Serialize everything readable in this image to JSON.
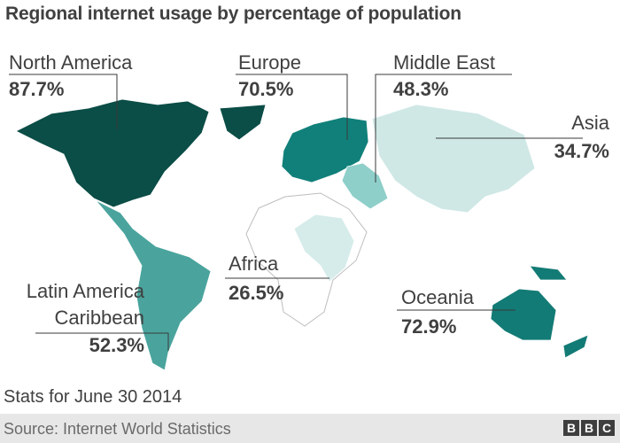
{
  "title": "Regional internet usage by percentage of population",
  "regions": [
    {
      "id": "north_america",
      "name": "North America",
      "value": "87.7%",
      "pct": 87.7,
      "color": "#0b4d47"
    },
    {
      "id": "europe",
      "name": "Europe",
      "value": "70.5%",
      "pct": 70.5,
      "color": "#11807a"
    },
    {
      "id": "middle_east",
      "name": "Middle East",
      "value": "48.3%",
      "pct": 48.3,
      "color": "#8fcfca"
    },
    {
      "id": "asia",
      "name": "Asia",
      "value": "34.7%",
      "pct": 34.7,
      "color": "#cfe8e6"
    },
    {
      "id": "africa",
      "name": "Africa",
      "value": "26.5%",
      "pct": 26.5,
      "color": "#d6ecea"
    },
    {
      "id": "oceania",
      "name": "Oceania",
      "value": "72.9%",
      "pct": 72.9,
      "color": "#137b75"
    },
    {
      "id": "latin_america",
      "name_line1": "Latin America",
      "name_line2": "Caribbean",
      "value": "52.3%",
      "pct": 52.3,
      "color": "#4aa49d"
    }
  ],
  "footnote": "Stats for June 30 2014",
  "source": "Source: Internet World Statistics",
  "logo": "BBC"
}
